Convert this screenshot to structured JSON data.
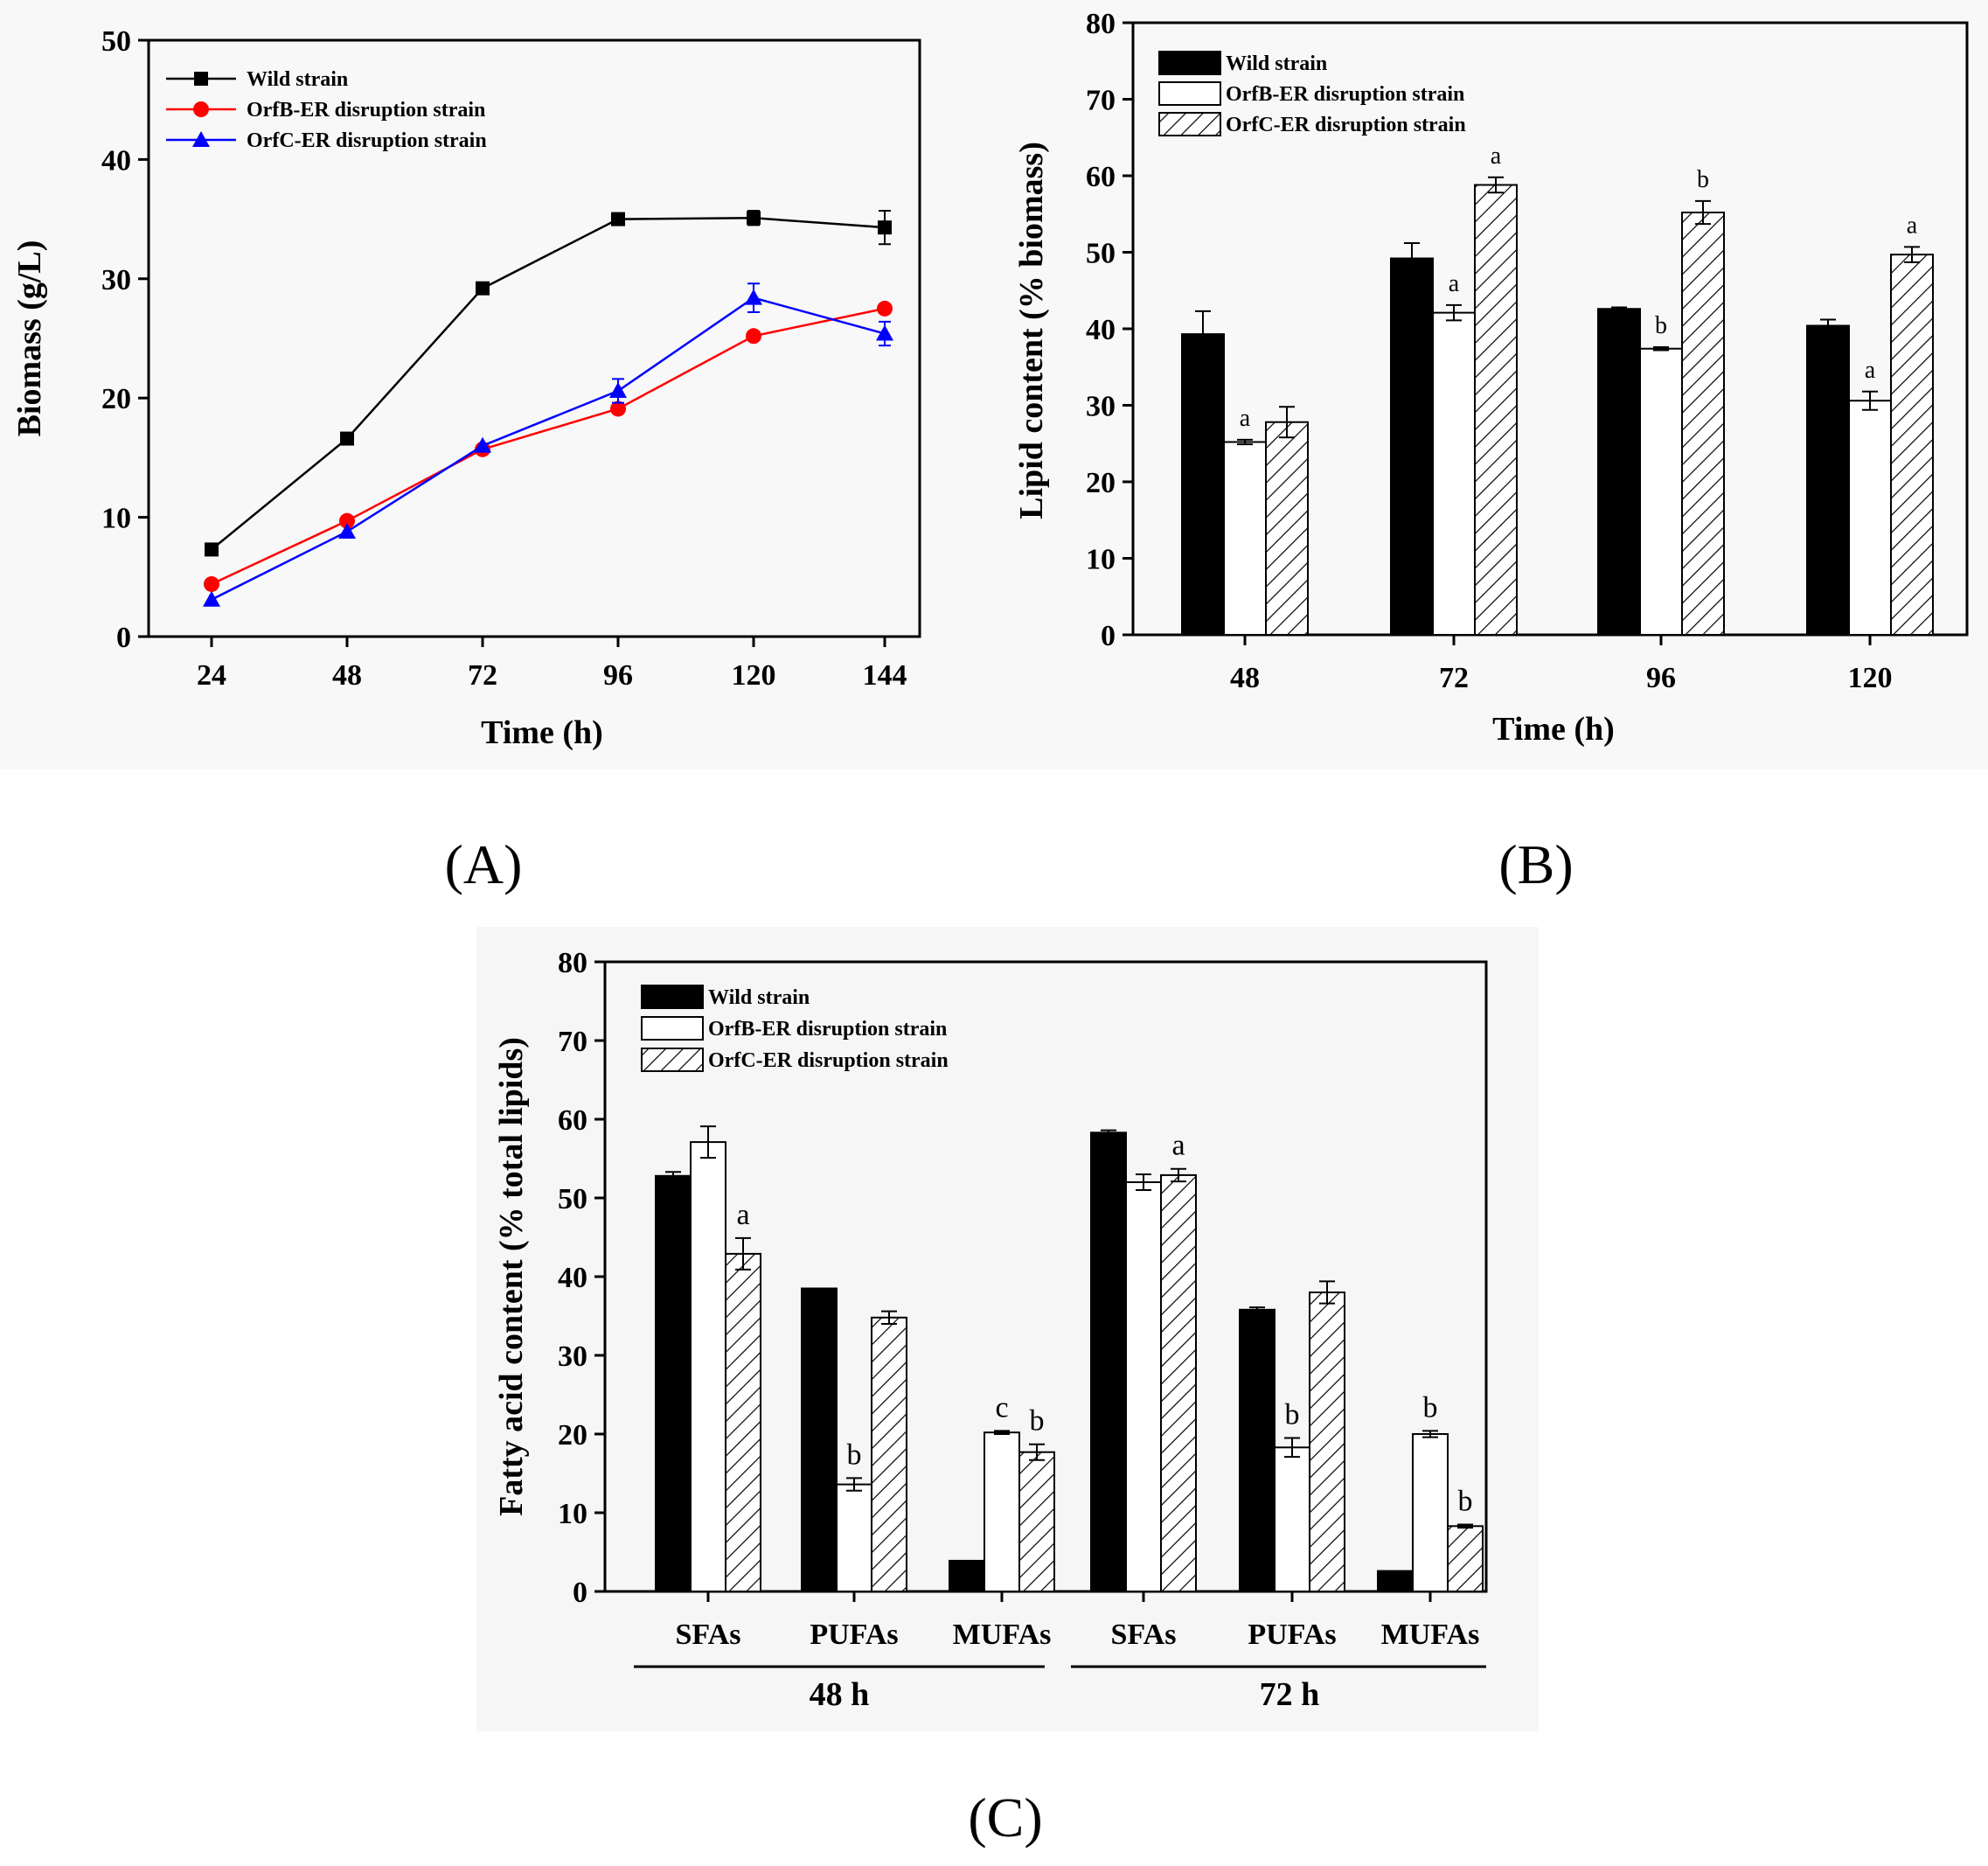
{
  "panel_labels": {
    "a": "(A)",
    "b": "(B)",
    "c": "(C)"
  },
  "chart_data": [
    {
      "type": "line",
      "xlabel": "Time (h)",
      "ylabel": "Biomass (g/L)",
      "x": [
        24,
        48,
        72,
        96,
        120,
        144
      ],
      "x_ticks": [
        "24",
        "48",
        "72",
        "96",
        "120",
        "144"
      ],
      "y_ticks": [
        "0",
        "10",
        "20",
        "30",
        "40",
        "50"
      ],
      "ylim": [
        0,
        50
      ],
      "legend_position": "top-left",
      "series": [
        {
          "name": "Wild strain",
          "color": "#000000",
          "marker": "square",
          "values": [
            7.3,
            16.6,
            29.2,
            35.0,
            35.1,
            34.3
          ],
          "errors": [
            0,
            0,
            0,
            0.5,
            0.6,
            1.4
          ]
        },
        {
          "name": "OrfB-ER disruption strain",
          "color": "#ff0000",
          "marker": "circle",
          "values": [
            4.4,
            9.7,
            15.7,
            19.1,
            25.2,
            27.5
          ],
          "errors": [
            0,
            0,
            0,
            0,
            0,
            0
          ]
        },
        {
          "name": "OrfC-ER disruption strain",
          "color": "#0000ff",
          "marker": "triangle",
          "values": [
            3.1,
            8.8,
            16.0,
            20.6,
            28.4,
            25.4
          ],
          "errors": [
            0,
            0,
            0,
            1.0,
            1.2,
            1.0
          ]
        }
      ]
    },
    {
      "type": "bar",
      "xlabel": "Time (h)",
      "ylabel": "Lipid content (% biomass)",
      "categories": [
        "48",
        "72",
        "96",
        "120"
      ],
      "y_ticks": [
        "0",
        "10",
        "20",
        "30",
        "40",
        "50",
        "60",
        "70",
        "80"
      ],
      "ylim": [
        0,
        80
      ],
      "legend_position": "top-left",
      "series": [
        {
          "name": "Wild strain",
          "fill": "black",
          "values": [
            39.3,
            49.2,
            42.6,
            40.4
          ],
          "errors": [
            3.0,
            2.0,
            0.2,
            0.8
          ],
          "labels": [
            "",
            "",
            "",
            ""
          ]
        },
        {
          "name": "OrfB-ER disruption strain",
          "fill": "white",
          "values": [
            25.2,
            42.1,
            37.4,
            30.6
          ],
          "errors": [
            0.3,
            1.0,
            0.2,
            1.2
          ],
          "labels": [
            "a",
            "a",
            "b",
            "a"
          ]
        },
        {
          "name": "OrfC-ER disruption strain",
          "fill": "hatch",
          "values": [
            27.8,
            58.8,
            55.2,
            49.7
          ],
          "errors": [
            2.0,
            1.0,
            1.5,
            1.0
          ],
          "labels": [
            "",
            "a",
            "b",
            "a"
          ]
        }
      ]
    },
    {
      "type": "bar",
      "xlabel": "",
      "ylabel": "Fatty acid content (% total lipids)",
      "categories": [
        "SFAs",
        "PUFAs",
        "MUFAs",
        "SFAs",
        "PUFAs",
        "MUFAs"
      ],
      "groups": [
        "48 h",
        "72 h"
      ],
      "y_ticks": [
        "0",
        "10",
        "20",
        "30",
        "40",
        "50",
        "60",
        "70",
        "80"
      ],
      "ylim": [
        0,
        80
      ],
      "legend_position": "top-left",
      "series": [
        {
          "name": "Wild strain",
          "fill": "black",
          "values": [
            52.8,
            38.5,
            3.9,
            58.3,
            35.8,
            2.6
          ],
          "errors": [
            0.5,
            0,
            0,
            0.3,
            0.3,
            0
          ],
          "labels": [
            "",
            "",
            "",
            "",
            "",
            ""
          ]
        },
        {
          "name": "OrfB-ER disruption strain",
          "fill": "white",
          "values": [
            57.1,
            13.6,
            20.2,
            52.0,
            18.3,
            20.0
          ],
          "errors": [
            2.0,
            0.8,
            0.2,
            1.0,
            1.2,
            0.4
          ],
          "labels": [
            "",
            "b",
            "c",
            "",
            "b",
            "b"
          ]
        },
        {
          "name": "OrfC-ER disruption strain",
          "fill": "hatch",
          "values": [
            42.9,
            34.8,
            17.7,
            52.9,
            38.0,
            8.3
          ],
          "errors": [
            2.0,
            0.8,
            1.0,
            0.8,
            1.4,
            0.2
          ],
          "labels": [
            "a",
            "",
            "b",
            "a",
            "",
            "b"
          ]
        }
      ]
    }
  ]
}
